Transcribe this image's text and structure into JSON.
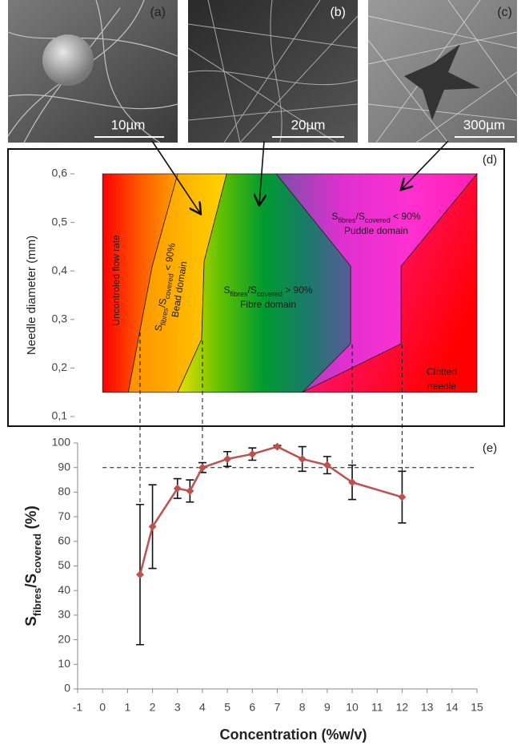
{
  "images": [
    {
      "panel": "(a)",
      "scale_bar": "10µm"
    },
    {
      "panel": "(b)",
      "scale_bar": "20µm"
    },
    {
      "panel": "(c)",
      "scale_bar": "300µm"
    }
  ],
  "chart_data": [
    {
      "type": "region",
      "panel": "(d)",
      "y_label": "Needle diameter (mm)",
      "xlim": [
        -1,
        15
      ],
      "ylim": [
        0.1,
        0.6
      ],
      "yticks": [
        {
          "value": 0.1,
          "label": "0,1"
        },
        {
          "value": 0.2,
          "label": "0,2"
        },
        {
          "value": 0.3,
          "label": "0,3"
        },
        {
          "value": 0.4,
          "label": "0,4"
        },
        {
          "value": 0.5,
          "label": "0,5"
        },
        {
          "value": 0.6,
          "label": "0,6"
        }
      ],
      "regions": [
        {
          "lines": [
            [
              "Uncontroled flow rate"
            ]
          ],
          "colors": [
            "#ff0000",
            "#ff5a00",
            "#ffa000"
          ],
          "points": [
            [
              0,
              0.15
            ],
            [
              1.03,
              0.15
            ],
            [
              1.99,
              0.41
            ],
            [
              3.01,
              0.6
            ],
            [
              0,
              0.6
            ]
          ]
        },
        {
          "lines": [
            [
              "S",
              "fibres",
              "/S",
              "covered",
              " < 90%"
            ],
            [
              "Bead domain"
            ]
          ],
          "colors": [
            "#ff9000",
            "#ffb000",
            "#ffd400"
          ],
          "points": [
            [
              1.03,
              0.15
            ],
            [
              3.01,
              0.15
            ],
            [
              3.97,
              0.26
            ],
            [
              4.07,
              0.42
            ],
            [
              4.97,
              0.6
            ],
            [
              3.01,
              0.6
            ],
            [
              1.99,
              0.41
            ]
          ]
        },
        {
          "lines": [
            [
              "S",
              "fibres",
              "/S",
              "covered",
              " > 90%"
            ],
            [
              "Fibre domain"
            ]
          ],
          "colors": [
            "#e8e000",
            "#60c000",
            "#009a30",
            "#1a7a6a",
            "#5a5a9a"
          ],
          "points": [
            [
              3.01,
              0.15
            ],
            [
              8.0,
              0.15
            ],
            [
              9.94,
              0.25
            ],
            [
              9.94,
              0.41
            ],
            [
              6.96,
              0.6
            ],
            [
              4.97,
              0.6
            ],
            [
              4.07,
              0.42
            ],
            [
              3.97,
              0.26
            ]
          ]
        },
        {
          "lines": [
            [
              "S",
              "fibres",
              "/S",
              "covered",
              " < 90%"
            ],
            [
              "Puddle domain"
            ]
          ],
          "colors": [
            "#7a50a8",
            "#e030d0",
            "#ff30d0",
            "#ff20b0"
          ],
          "points": [
            [
              6.96,
              0.6
            ],
            [
              15,
              0.6
            ],
            [
              11.96,
              0.41
            ],
            [
              11.96,
              0.25
            ],
            [
              8.0,
              0.15
            ],
            [
              9.94,
              0.25
            ],
            [
              9.94,
              0.41
            ]
          ]
        },
        {
          "lines": [
            [
              "Clotted"
            ],
            [
              "needle"
            ]
          ],
          "colors": [
            "#ff30c0",
            "#ff1060",
            "#ff0000"
          ],
          "points": [
            [
              8.0,
              0.15
            ],
            [
              15,
              0.15
            ],
            [
              15,
              0.6
            ],
            [
              11.96,
              0.41
            ],
            [
              11.96,
              0.25
            ]
          ]
        }
      ]
    },
    {
      "type": "line",
      "panel": "(e)",
      "y_label": [
        "S",
        "fibres",
        "/S",
        "covered",
        " (%)"
      ],
      "x_label": "Concentration (%w/v)",
      "xlim": [
        -1,
        15
      ],
      "xticks": [
        -1,
        0,
        1,
        2,
        3,
        4,
        5,
        6,
        7,
        8,
        9,
        10,
        11,
        12,
        13,
        14,
        15
      ],
      "ylim": [
        0,
        100
      ],
      "yticks": [
        0,
        10,
        20,
        30,
        40,
        50,
        60,
        70,
        80,
        90,
        100
      ],
      "reference_line": 90,
      "x": [
        1.5,
        2,
        3,
        3.5,
        4,
        5,
        6,
        7,
        8,
        9,
        10,
        12
      ],
      "series": [
        {
          "color": "#c0504d",
          "values": [
            46.5,
            66,
            81.5,
            80.5,
            90,
            93.5,
            95.5,
            98.5,
            93.5,
            91,
            84,
            78
          ],
          "errors": [
            28.5,
            17,
            4,
            4.5,
            2,
            3,
            2.5,
            0.5,
            5,
            3.5,
            7,
            10.5
          ]
        }
      ]
    }
  ]
}
